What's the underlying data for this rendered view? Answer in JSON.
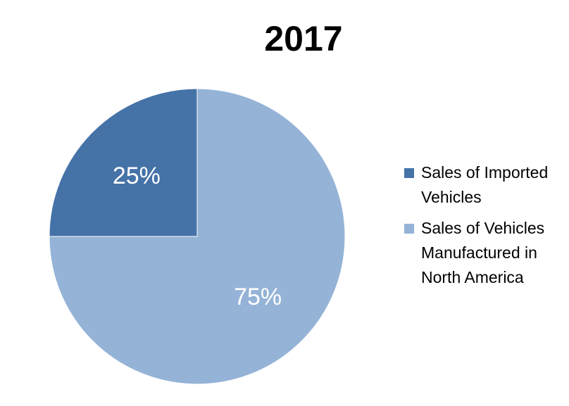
{
  "chart_data": {
    "type": "pie",
    "title": "2017",
    "slices": [
      {
        "label": "Sales of Imported Vehicles",
        "value": 25,
        "data_label": "25%",
        "color": "#4572A7"
      },
      {
        "label": "Sales of Vehicles Manufactured in North America",
        "value": 75,
        "data_label": "75%",
        "color": "#95B3D7"
      }
    ],
    "legend_position": "right",
    "data_label_color": "#ffffff"
  }
}
